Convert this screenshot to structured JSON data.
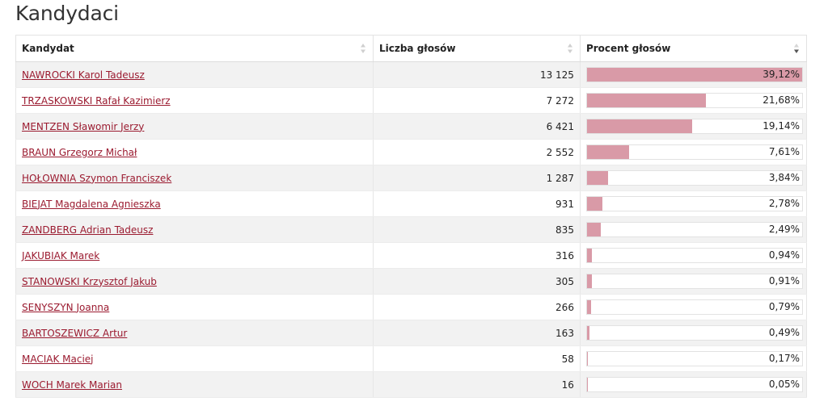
{
  "page": {
    "title": "Kandydaci"
  },
  "table": {
    "headers": {
      "candidate": "Kandydat",
      "votes": "Liczba głosów",
      "percent": "Procent głosów"
    },
    "sort": {
      "column": "percent",
      "direction": "descending"
    },
    "colors": {
      "bar": "#d99aa7",
      "link": "#9b1b30",
      "stripe": "#f2f2f2"
    },
    "rows": [
      {
        "name": "NAWROCKI Karol Tadeusz",
        "votes": "13 125",
        "percent_label": "39,12%",
        "percent": 39.12
      },
      {
        "name": "TRZASKOWSKI Rafał Kazimierz",
        "votes": "7 272",
        "percent_label": "21,68%",
        "percent": 21.68
      },
      {
        "name": "MENTZEN Sławomir Jerzy",
        "votes": "6 421",
        "percent_label": "19,14%",
        "percent": 19.14
      },
      {
        "name": "BRAUN Grzegorz Michał",
        "votes": "2 552",
        "percent_label": "7,61%",
        "percent": 7.61
      },
      {
        "name": "HOŁOWNIA Szymon Franciszek",
        "votes": "1 287",
        "percent_label": "3,84%",
        "percent": 3.84
      },
      {
        "name": "BIEJAT Magdalena Agnieszka",
        "votes": "931",
        "percent_label": "2,78%",
        "percent": 2.78
      },
      {
        "name": "ZANDBERG Adrian Tadeusz",
        "votes": "835",
        "percent_label": "2,49%",
        "percent": 2.49
      },
      {
        "name": "JAKUBIAK Marek",
        "votes": "316",
        "percent_label": "0,94%",
        "percent": 0.94
      },
      {
        "name": "STANOWSKI Krzysztof Jakub",
        "votes": "305",
        "percent_label": "0,91%",
        "percent": 0.91
      },
      {
        "name": "SENYSZYN Joanna",
        "votes": "266",
        "percent_label": "0,79%",
        "percent": 0.79
      },
      {
        "name": "BARTOSZEWICZ Artur",
        "votes": "163",
        "percent_label": "0,49%",
        "percent": 0.49
      },
      {
        "name": "MACIAK Maciej",
        "votes": "58",
        "percent_label": "0,17%",
        "percent": 0.17
      },
      {
        "name": "WOCH Marek Marian",
        "votes": "16",
        "percent_label": "0,05%",
        "percent": 0.05
      }
    ]
  }
}
